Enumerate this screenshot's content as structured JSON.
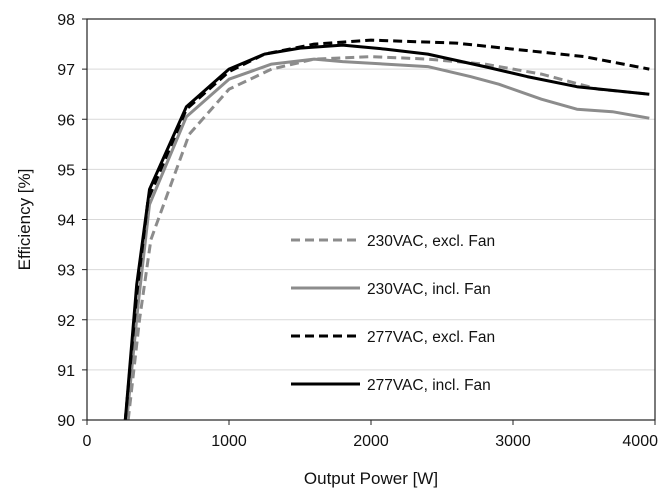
{
  "chart_data": {
    "type": "line",
    "xlabel": "Output Power [W]",
    "ylabel": "Efficiency [%]",
    "xlim": [
      0,
      4000
    ],
    "ylim": [
      90,
      98
    ],
    "x_ticks": [
      0,
      1000,
      2000,
      3000,
      4000
    ],
    "y_ticks": [
      90,
      91,
      92,
      93,
      94,
      95,
      96,
      97,
      98
    ],
    "x_tick_labels": [
      "0",
      "1000",
      "2000",
      "3000",
      "4000"
    ],
    "y_tick_labels": [
      "90",
      "91",
      "92",
      "93",
      "94",
      "95",
      "96",
      "97",
      "98"
    ],
    "grid": "horizontal",
    "legend_placement": "center inside plot, lower half",
    "series": [
      {
        "name": "230VAC, excl. Fan",
        "color": "#8c8c8c",
        "dash": "dashed",
        "x": [
          290,
          370,
          450,
          720,
          1000,
          1300,
          1600,
          2000,
          2400,
          2800,
          3200,
          3600,
          3960
        ],
        "y": [
          90.0,
          92.0,
          93.6,
          95.7,
          96.6,
          97.0,
          97.2,
          97.25,
          97.2,
          97.1,
          96.9,
          96.6,
          96.5
        ]
      },
      {
        "name": "230VAC, incl. Fan",
        "color": "#8c8c8c",
        "dash": "solid",
        "x": [
          280,
          360,
          440,
          700,
          1000,
          1300,
          1600,
          1800,
          2100,
          2400,
          2700,
          2900,
          3200,
          3450,
          3700,
          3960
        ],
        "y": [
          90.0,
          92.3,
          94.3,
          96.05,
          96.8,
          97.1,
          97.2,
          97.15,
          97.1,
          97.05,
          96.85,
          96.7,
          96.4,
          96.2,
          96.15,
          96.02
        ]
      },
      {
        "name": "277VAC, excl. Fan",
        "color": "#000000",
        "dash": "dashed",
        "x": [
          270,
          350,
          430,
          700,
          1000,
          1250,
          1600,
          2000,
          2600,
          3000,
          3500,
          3960
        ],
        "y": [
          90.0,
          92.5,
          94.4,
          96.2,
          96.95,
          97.3,
          97.5,
          97.58,
          97.52,
          97.4,
          97.25,
          97.0
        ]
      },
      {
        "name": "277VAC, incl. Fan",
        "color": "#000000",
        "dash": "solid",
        "x": [
          270,
          350,
          440,
          700,
          1000,
          1250,
          1500,
          1800,
          2100,
          2400,
          2800,
          3100,
          3450,
          3960
        ],
        "y": [
          90.0,
          92.7,
          94.6,
          96.25,
          97.0,
          97.3,
          97.42,
          97.48,
          97.4,
          97.3,
          97.05,
          96.85,
          96.65,
          96.5
        ]
      }
    ]
  }
}
